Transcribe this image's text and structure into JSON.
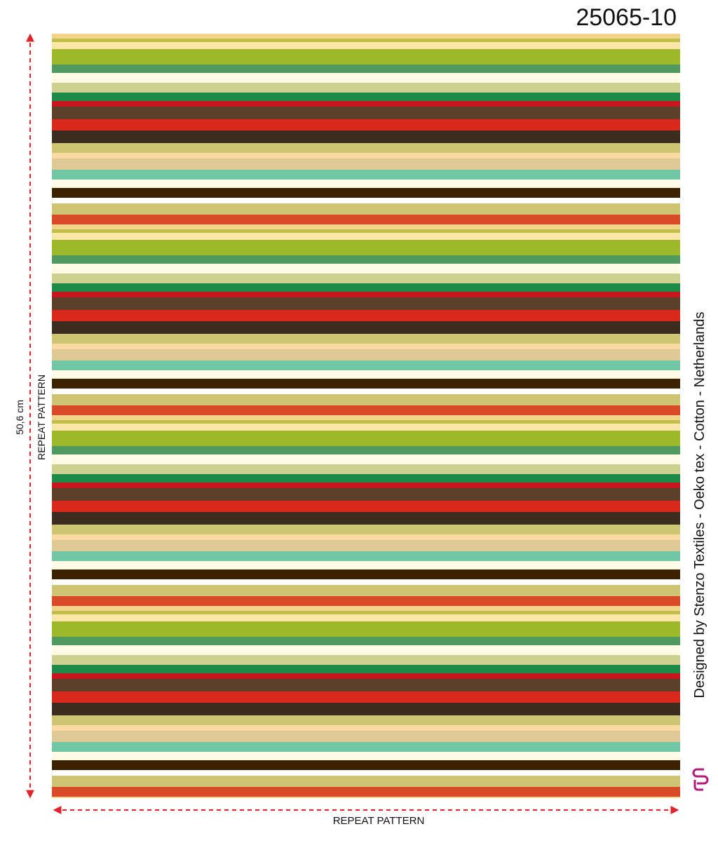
{
  "header": {
    "code": "25065-10"
  },
  "dimensions": {
    "height": "50,6 cm",
    "vertical_label": "REPEAT PATTERN",
    "horizontal_label": "REPEAT PATTERN"
  },
  "credit": "Designed by Stenzo Textiles - Oeko tex - Cotton - Netherlands"
}
